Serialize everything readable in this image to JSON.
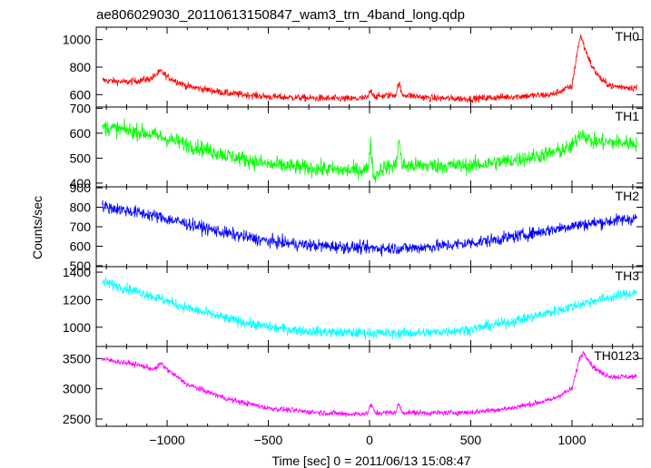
{
  "chart_data": {
    "type": "line",
    "title": "ae806029030_20110613150847_wam3_trn_4band_long.qdp",
    "xlabel": "Time [sec] 0 = 2011/06/13 15:08:47",
    "ylabel": "Counts/sec",
    "xlim": [
      -1350,
      1350
    ],
    "x_ticks": [
      -1000,
      -500,
      0,
      500,
      1000
    ],
    "x_tick_labels": [
      "−1000",
      "−500",
      "0",
      "500",
      "1000"
    ],
    "x_range_data": [
      -1320,
      1320
    ],
    "grid": false,
    "panels": [
      {
        "name": "TH0",
        "color": "#ff0000",
        "ylim": [
          510,
          1090
        ],
        "y_ticks": [
          600,
          800,
          1000
        ],
        "noise": 26,
        "profile": [
          [
            -1320,
            705
          ],
          [
            -1200,
            690
          ],
          [
            -1080,
            715
          ],
          [
            -1030,
            770
          ],
          [
            -1000,
            730
          ],
          [
            -900,
            660
          ],
          [
            -700,
            610
          ],
          [
            -500,
            585
          ],
          [
            -300,
            575
          ],
          [
            -100,
            570
          ],
          [
            -10,
            575
          ],
          [
            5,
            630
          ],
          [
            30,
            585
          ],
          [
            130,
            600
          ],
          [
            145,
            690
          ],
          [
            160,
            600
          ],
          [
            300,
            575
          ],
          [
            500,
            570
          ],
          [
            700,
            585
          ],
          [
            900,
            600
          ],
          [
            1000,
            660
          ],
          [
            1030,
            950
          ],
          [
            1045,
            1030
          ],
          [
            1060,
            950
          ],
          [
            1100,
            800
          ],
          [
            1150,
            700
          ],
          [
            1200,
            660
          ],
          [
            1320,
            650
          ]
        ]
      },
      {
        "name": "TH1",
        "color": "#00ff00",
        "ylim": [
          385,
          705
        ],
        "y_ticks": [
          400,
          500,
          600,
          700
        ],
        "noise": 32,
        "profile": [
          [
            -1320,
            625
          ],
          [
            -1100,
            600
          ],
          [
            -900,
            555
          ],
          [
            -700,
            510
          ],
          [
            -500,
            475
          ],
          [
            -300,
            460
          ],
          [
            -100,
            450
          ],
          [
            -10,
            455
          ],
          [
            5,
            560
          ],
          [
            20,
            420
          ],
          [
            60,
            460
          ],
          [
            130,
            470
          ],
          [
            145,
            580
          ],
          [
            160,
            470
          ],
          [
            300,
            470
          ],
          [
            500,
            470
          ],
          [
            700,
            490
          ],
          [
            900,
            520
          ],
          [
            1000,
            545
          ],
          [
            1045,
            605
          ],
          [
            1100,
            565
          ],
          [
            1320,
            560
          ]
        ]
      },
      {
        "name": "TH2",
        "color": "#0000ff",
        "ylim": [
          495,
          905
        ],
        "y_ticks": [
          500,
          600,
          700,
          800,
          900
        ],
        "noise": 32,
        "profile": [
          [
            -1320,
            805
          ],
          [
            -1100,
            765
          ],
          [
            -900,
            715
          ],
          [
            -700,
            665
          ],
          [
            -500,
            625
          ],
          [
            -300,
            605
          ],
          [
            -100,
            595
          ],
          [
            0,
            590
          ],
          [
            200,
            590
          ],
          [
            400,
            605
          ],
          [
            600,
            630
          ],
          [
            800,
            665
          ],
          [
            1000,
            705
          ],
          [
            1200,
            730
          ],
          [
            1320,
            745
          ]
        ]
      },
      {
        "name": "TH3",
        "color": "#00ffff",
        "ylim": [
          860,
          1440
        ],
        "y_ticks": [
          1000,
          1200,
          1400
        ],
        "noise": 38,
        "profile": [
          [
            -1320,
            1330
          ],
          [
            -1100,
            1240
          ],
          [
            -900,
            1140
          ],
          [
            -700,
            1060
          ],
          [
            -500,
            1000
          ],
          [
            -300,
            970
          ],
          [
            -100,
            960
          ],
          [
            100,
            955
          ],
          [
            300,
            960
          ],
          [
            500,
            985
          ],
          [
            700,
            1040
          ],
          [
            900,
            1110
          ],
          [
            1100,
            1190
          ],
          [
            1320,
            1255
          ]
        ]
      },
      {
        "name": "TH0123",
        "color": "#ff00ff",
        "ylim": [
          2380,
          3700
        ],
        "y_ticks": [
          2500,
          3000,
          3500
        ],
        "noise": 45,
        "profile": [
          [
            -1320,
            3490
          ],
          [
            -1150,
            3400
          ],
          [
            -1060,
            3320
          ],
          [
            -1030,
            3420
          ],
          [
            -1000,
            3320
          ],
          [
            -900,
            3070
          ],
          [
            -700,
            2830
          ],
          [
            -500,
            2680
          ],
          [
            -300,
            2620
          ],
          [
            -100,
            2580
          ],
          [
            -10,
            2590
          ],
          [
            5,
            2740
          ],
          [
            30,
            2600
          ],
          [
            130,
            2610
          ],
          [
            145,
            2760
          ],
          [
            160,
            2610
          ],
          [
            300,
            2600
          ],
          [
            500,
            2610
          ],
          [
            700,
            2680
          ],
          [
            900,
            2820
          ],
          [
            1000,
            3000
          ],
          [
            1040,
            3530
          ],
          [
            1060,
            3600
          ],
          [
            1100,
            3380
          ],
          [
            1150,
            3250
          ],
          [
            1200,
            3200
          ],
          [
            1320,
            3200
          ]
        ]
      }
    ]
  }
}
